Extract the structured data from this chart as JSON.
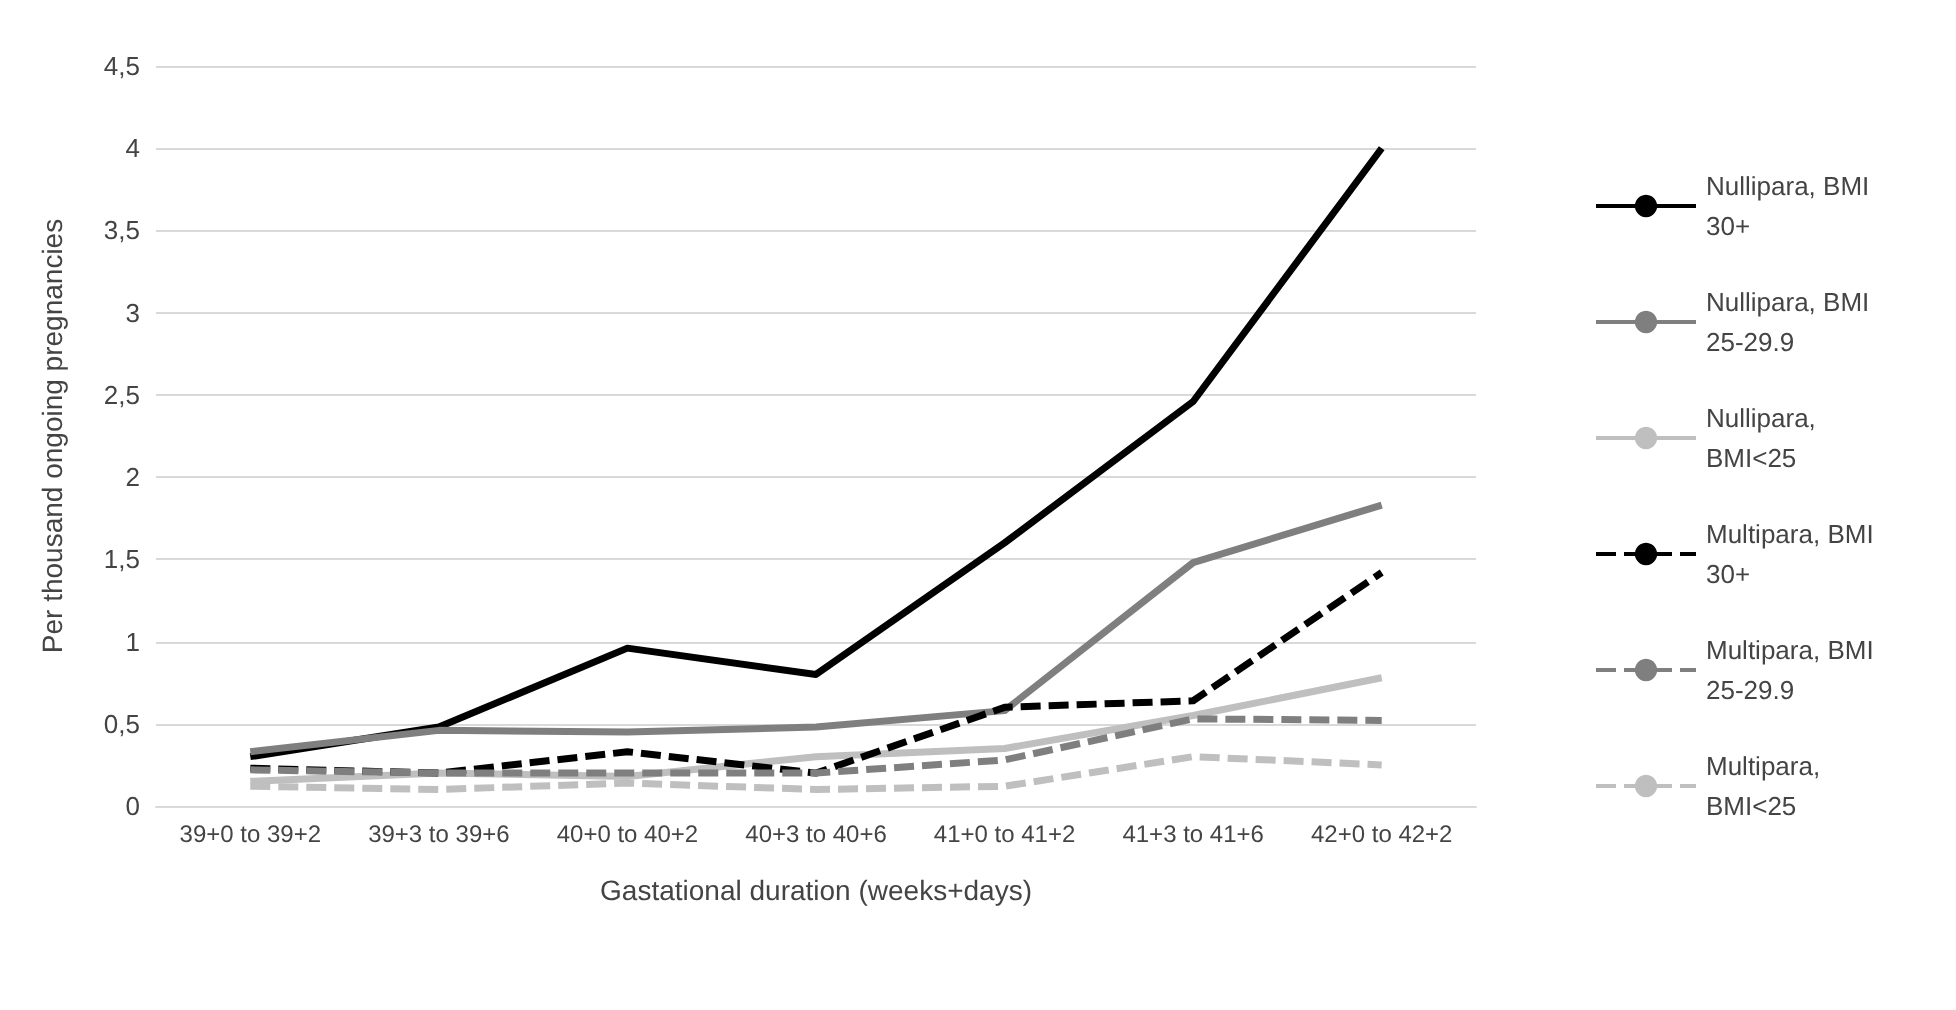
{
  "chart_data": {
    "type": "line",
    "xlabel": "Gastational duration (weeks+days)",
    "ylabel": "Per thousand ongoing pregnancies",
    "categories": [
      "39+0 to 39+2",
      "39+3 to 39+6",
      "40+0 to 40+2",
      "40+3 to 40+6",
      "41+0 to 41+2",
      "41+3 to 41+6",
      "42+0 to 42+2"
    ],
    "series": [
      {
        "name": "Nullipara, BMI 30+",
        "color": "#000000",
        "line_style": "solid",
        "values": [
          0.3,
          0.48,
          0.96,
          0.8,
          1.6,
          2.46,
          4.0
        ]
      },
      {
        "name": "Nullipara, BMI 25-29.9",
        "color": "#7f7f7f",
        "line_style": "solid",
        "values": [
          0.33,
          0.46,
          0.45,
          0.48,
          0.58,
          1.48,
          1.83
        ]
      },
      {
        "name": "Nullipara, BMI<25",
        "color": "#bfbfbf",
        "line_style": "solid",
        "values": [
          0.15,
          0.2,
          0.18,
          0.3,
          0.35,
          0.55,
          0.78
        ]
      },
      {
        "name": "Multipara, BMI 30+",
        "color": "#000000",
        "line_style": "dashed",
        "values": [
          0.23,
          0.2,
          0.33,
          0.2,
          0.6,
          0.64,
          1.42
        ]
      },
      {
        "name": "Multipara, BMI 25-29.9",
        "color": "#7f7f7f",
        "line_style": "dashed",
        "values": [
          0.22,
          0.2,
          0.2,
          0.2,
          0.28,
          0.53,
          0.52
        ]
      },
      {
        "name": "Multipara, BMI<25",
        "color": "#bfbfbf",
        "line_style": "dashed",
        "values": [
          0.12,
          0.1,
          0.14,
          0.1,
          0.12,
          0.3,
          0.25
        ]
      }
    ],
    "ylim": [
      0,
      4.5
    ],
    "yticks": [
      0,
      {
        "value": 0.5,
        "label": "0,5"
      },
      1,
      {
        "value": 1.5,
        "label": "1,5"
      },
      2,
      {
        "value": 2.5,
        "label": "2,5"
      },
      3,
      {
        "value": 3.5,
        "label": "3,5"
      },
      4,
      {
        "value": 4.5,
        "label": "4,5"
      }
    ],
    "grid": "y",
    "legend": "right",
    "marker": "none"
  }
}
